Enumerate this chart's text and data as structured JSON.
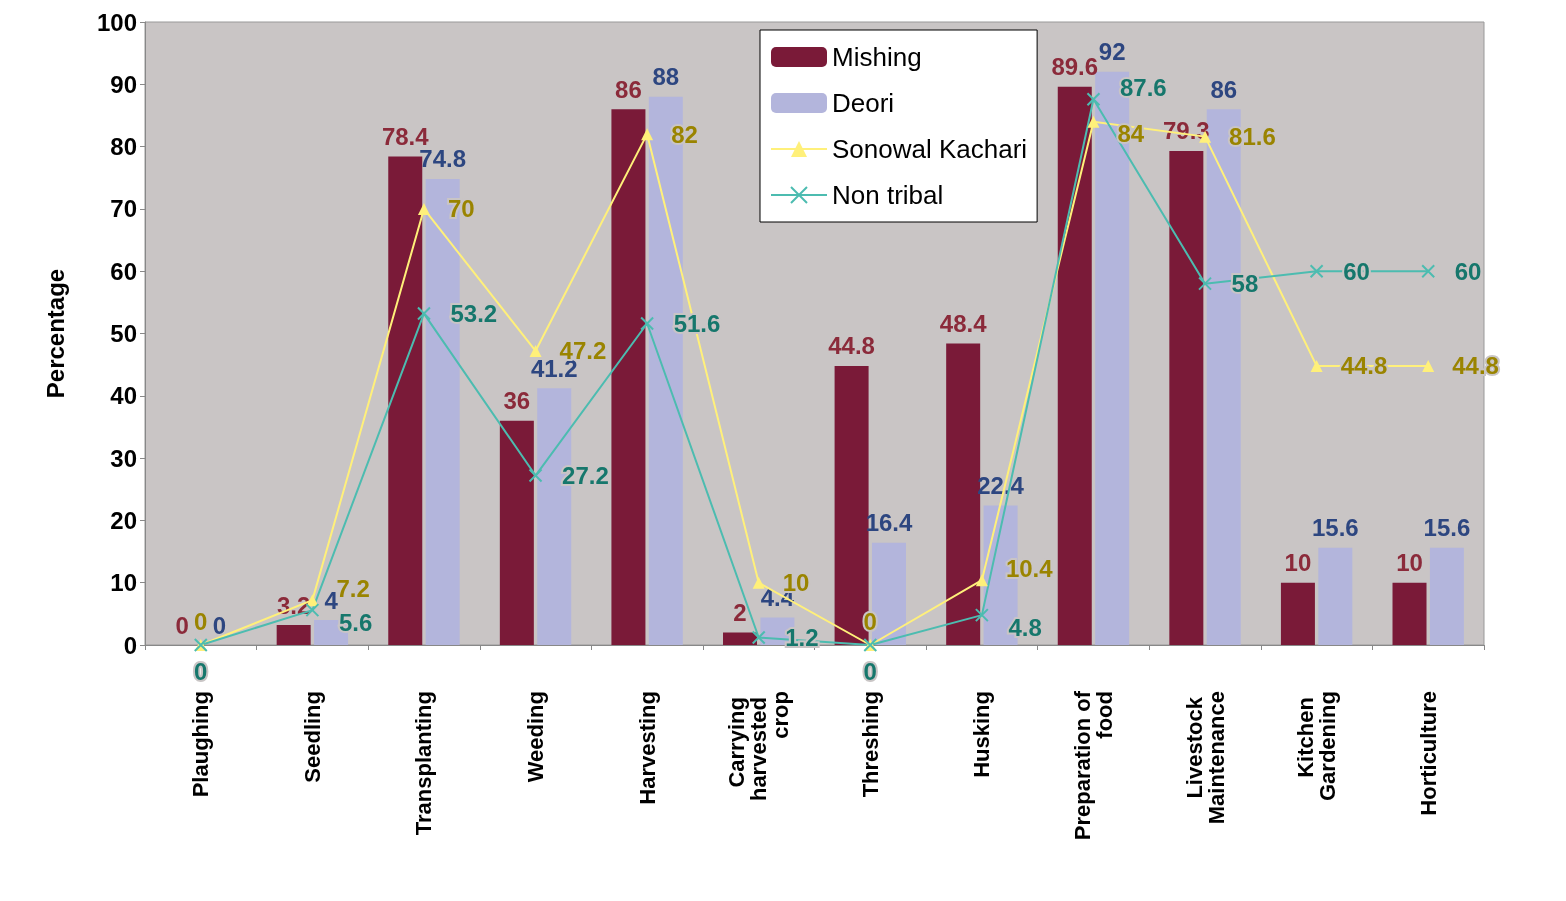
{
  "chart_data": {
    "type": "bar",
    "ylabel": "Percentage",
    "categories": [
      "Plaughing",
      "Seedling",
      "Transplanting",
      "Weeding",
      "Harvesting",
      "Carrying harvested crop",
      "Threshing",
      "Husking",
      "Preparation of food",
      "Livestock Maintenance",
      "Kitchen Gardening",
      "Horticulture"
    ],
    "series": [
      {
        "name": "Mishing",
        "color": "#7a1a38",
        "values": [
          0,
          3.2,
          78.4,
          36,
          86,
          2,
          44.8,
          48.4,
          89.6,
          79.3,
          10,
          10
        ]
      },
      {
        "name": "Deori",
        "color": "#b3b5dc",
        "values": [
          0,
          4,
          74.8,
          41.2,
          88,
          4.4,
          16.4,
          22.4,
          92,
          86,
          15.6,
          15.6
        ]
      },
      {
        "name": "Sonowal Kachari",
        "type": "line",
        "marker": "triangle",
        "color": "#fff07a",
        "values": [
          0,
          7.2,
          70,
          47.2,
          82,
          10,
          0,
          10.4,
          84,
          81.6,
          44.8,
          44.8
        ]
      },
      {
        "name": "Non tribal",
        "type": "line",
        "marker": "cross",
        "color": "#4cbcb0",
        "values": [
          0,
          5.6,
          53.2,
          27.2,
          51.6,
          1.2,
          0,
          4.8,
          87.6,
          58,
          60,
          60
        ]
      }
    ],
    "ylim": [
      0,
      100
    ],
    "yticks": [
      0,
      10,
      20,
      30,
      40,
      50,
      60,
      70,
      80,
      90,
      100
    ],
    "grid": false,
    "legend": "top right",
    "data_labels": true
  }
}
